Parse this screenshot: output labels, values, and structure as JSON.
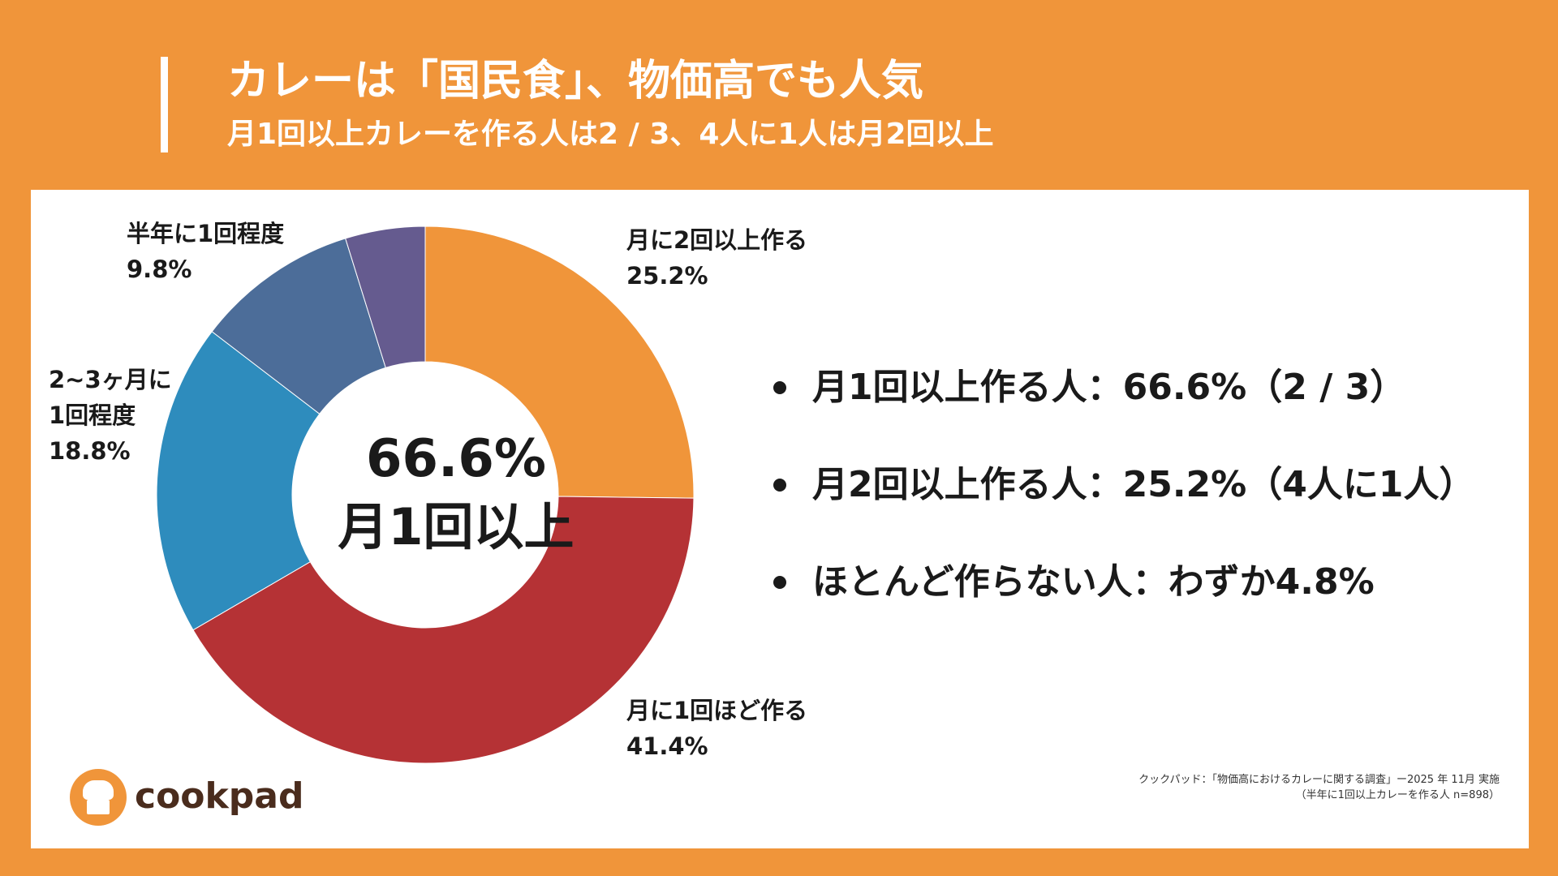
{
  "header": {
    "title": "カレーは「国民食」、物価高でも人気",
    "subtitle": "月1回以上カレーを作る人は2 / 3、4人に1人は月2回以上"
  },
  "chart_data": {
    "type": "pie",
    "title": "",
    "donut": true,
    "center": {
      "value": "66.6%",
      "label": "月1回以上"
    },
    "slices": [
      {
        "label": "月に2回以上作る",
        "value": 25.2,
        "display": "25.2%",
        "color": "#f0953a"
      },
      {
        "label": "月に1回ほど作る",
        "value": 41.4,
        "display": "41.4%",
        "color": "#b53235"
      },
      {
        "label": "2~3ヶ月に1回程度",
        "label_lines": [
          "2~3ヶ月に",
          "1回程度"
        ],
        "value": 18.8,
        "display": "18.8%",
        "color": "#2e8cbd"
      },
      {
        "label": "半年に1回程度",
        "value": 9.8,
        "display": "9.8%",
        "color": "#4c6d99"
      },
      {
        "label": "",
        "value": 4.8,
        "display": "",
        "color": "#655b8f"
      }
    ]
  },
  "bullets": [
    {
      "text": "月1回以上作る人：66.6%（2 / 3）"
    },
    {
      "text": "月2回以上作る人：25.2%（4人に1人）"
    },
    {
      "text": "ほとんど作らない人：わずか4.8%"
    }
  ],
  "logo": {
    "text": "cookpad"
  },
  "source": {
    "line1": "クックパッド：「物価高におけるカレーに関する調査」ー2025 年 11月 実施",
    "line2": "（半年に1回以上カレーを作る人 n=898）"
  }
}
